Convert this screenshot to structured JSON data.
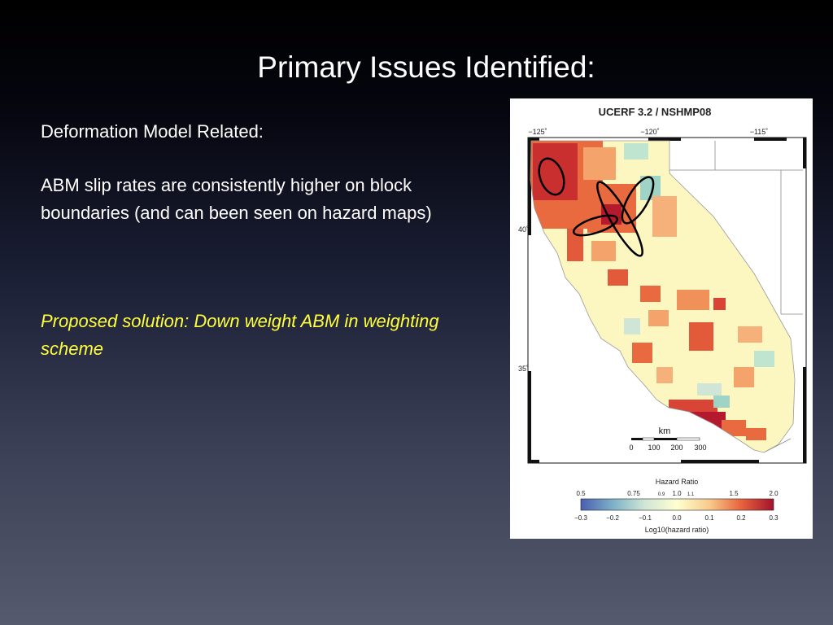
{
  "slide": {
    "title": "Primary Issues Identified:",
    "heading": "Deformation Model Related:",
    "paragraph": "ABM slip rates are consistently higher on block boundaries (and can been seen on hazard maps)",
    "solution": "Proposed solution:  Down weight ABM in weighting scheme"
  },
  "figure": {
    "title": "UCERF 3.2 / NSHMP08",
    "lon_labels": [
      "−125˚",
      "−120˚",
      "−115˚"
    ],
    "lat_labels": [
      "40˚",
      "35˚"
    ],
    "scale": {
      "unit": "km",
      "ticks": [
        "0",
        "100",
        "200",
        "300"
      ]
    },
    "colorbar": {
      "title": "Hazard Ratio",
      "top_ticks": [
        "0.5",
        "0.75",
        "0.9",
        "1.0",
        "1.1",
        "1.5",
        "2.0"
      ],
      "bottom_ticks": [
        "−0.3",
        "−0.2",
        "−0.1",
        "0.0",
        "0.1",
        "0.2",
        "0.3"
      ],
      "label": "Log10(hazard ratio)",
      "colors": [
        "#4a5fb0",
        "#7fb2c8",
        "#cfe6d6",
        "#ffffd0",
        "#f7c98a",
        "#e8643c",
        "#a3132e"
      ]
    },
    "highlight_ellipses": 4
  }
}
